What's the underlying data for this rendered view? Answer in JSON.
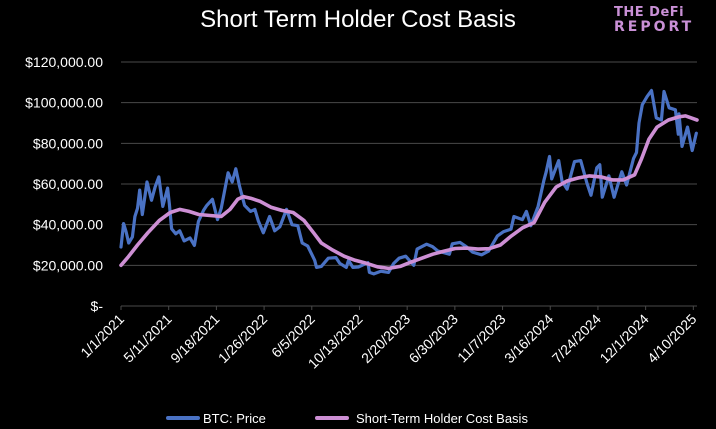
{
  "brand": {
    "line1": "THE DeFi",
    "line2": "REPORT"
  },
  "colors": {
    "background": "#000000",
    "grid": "#4a4a4a",
    "text": "#ffffff",
    "btc_price": "#4a72c4",
    "sth_cost_basis": "#cd8fd4",
    "brand": "#c990d6"
  },
  "chart_data": {
    "type": "line",
    "title": "Short Term Holder Cost Basis",
    "xlabel": "",
    "ylabel": "",
    "x_axis_type": "date",
    "xlim": [
      "2021-01-01",
      "2025-04-20"
    ],
    "ylim": [
      0,
      120000
    ],
    "grid": true,
    "legend_position": "bottom",
    "y_ticks": [
      {
        "value": 120000,
        "label": "$120,000.00"
      },
      {
        "value": 100000,
        "label": "$100,000.00"
      },
      {
        "value": 80000,
        "label": "$80,000.00"
      },
      {
        "value": 60000,
        "label": "$60,000.00"
      },
      {
        "value": 40000,
        "label": "$40,000.00"
      },
      {
        "value": 20000,
        "label": "$20,000.00"
      },
      {
        "value": 0,
        "label": "$-"
      }
    ],
    "x_ticks": [
      {
        "date": "2021-01-01",
        "label": "1/1/2021"
      },
      {
        "date": "2021-05-11",
        "label": "5/11/2021"
      },
      {
        "date": "2021-09-18",
        "label": "9/18/2021"
      },
      {
        "date": "2022-01-26",
        "label": "1/26/2022"
      },
      {
        "date": "2022-06-05",
        "label": "6/5/2022"
      },
      {
        "date": "2022-10-13",
        "label": "10/13/2022"
      },
      {
        "date": "2023-02-20",
        "label": "2/20/2023"
      },
      {
        "date": "2023-06-30",
        "label": "6/30/2023"
      },
      {
        "date": "2023-11-07",
        "label": "11/7/2023"
      },
      {
        "date": "2024-03-16",
        "label": "3/16/2024"
      },
      {
        "date": "2024-07-24",
        "label": "7/24/2024"
      },
      {
        "date": "2024-12-01",
        "label": "12/1/2024"
      },
      {
        "date": "2025-04-10",
        "label": "4/10/2025"
      }
    ],
    "series": [
      {
        "name": "BTC: Price",
        "color": "#4a72c4",
        "points": [
          [
            "2021-01-01",
            29000
          ],
          [
            "2021-01-08",
            40500
          ],
          [
            "2021-01-15",
            36500
          ],
          [
            "2021-01-22",
            31000
          ],
          [
            "2021-02-01",
            34000
          ],
          [
            "2021-02-08",
            44000
          ],
          [
            "2021-02-15",
            48000
          ],
          [
            "2021-02-21",
            57000
          ],
          [
            "2021-02-28",
            45000
          ],
          [
            "2021-03-13",
            61000
          ],
          [
            "2021-03-25",
            52000
          ],
          [
            "2021-04-04",
            58500
          ],
          [
            "2021-04-14",
            63500
          ],
          [
            "2021-04-25",
            49000
          ],
          [
            "2021-05-08",
            58000
          ],
          [
            "2021-05-13",
            50000
          ],
          [
            "2021-05-19",
            38000
          ],
          [
            "2021-05-30",
            35500
          ],
          [
            "2021-06-10",
            37000
          ],
          [
            "2021-06-22",
            32000
          ],
          [
            "2021-07-08",
            33500
          ],
          [
            "2021-07-20",
            29800
          ],
          [
            "2021-07-31",
            41500
          ],
          [
            "2021-08-14",
            47000
          ],
          [
            "2021-08-23",
            49500
          ],
          [
            "2021-09-07",
            52500
          ],
          [
            "2021-09-21",
            42500
          ],
          [
            "2021-10-01",
            48000
          ],
          [
            "2021-10-15",
            61000
          ],
          [
            "2021-10-20",
            65500
          ],
          [
            "2021-10-31",
            61000
          ],
          [
            "2021-11-10",
            67500
          ],
          [
            "2021-11-20",
            59000
          ],
          [
            "2021-12-04",
            49500
          ],
          [
            "2021-12-20",
            46500
          ],
          [
            "2022-01-01",
            47500
          ],
          [
            "2022-01-10",
            42000
          ],
          [
            "2022-01-24",
            36000
          ],
          [
            "2022-02-10",
            44000
          ],
          [
            "2022-02-24",
            37000
          ],
          [
            "2022-03-10",
            39000
          ],
          [
            "2022-03-28",
            47500
          ],
          [
            "2022-04-12",
            40000
          ],
          [
            "2022-04-28",
            39500
          ],
          [
            "2022-05-10",
            31000
          ],
          [
            "2022-05-25",
            29500
          ],
          [
            "2022-06-13",
            22500
          ],
          [
            "2022-06-18",
            19000
          ],
          [
            "2022-07-01",
            19500
          ],
          [
            "2022-07-20",
            23500
          ],
          [
            "2022-08-10",
            23800
          ],
          [
            "2022-08-20",
            21000
          ],
          [
            "2022-09-07",
            19000
          ],
          [
            "2022-09-13",
            22500
          ],
          [
            "2022-09-25",
            19000
          ],
          [
            "2022-10-10",
            19200
          ],
          [
            "2022-10-26",
            20500
          ],
          [
            "2022-11-05",
            21300
          ],
          [
            "2022-11-09",
            16500
          ],
          [
            "2022-11-21",
            15800
          ],
          [
            "2022-12-10",
            17100
          ],
          [
            "2022-12-31",
            16500
          ],
          [
            "2023-01-14",
            20900
          ],
          [
            "2023-01-29",
            23500
          ],
          [
            "2023-02-16",
            24500
          ],
          [
            "2023-03-10",
            20000
          ],
          [
            "2023-03-19",
            28000
          ],
          [
            "2023-04-14",
            30400
          ],
          [
            "2023-04-30",
            29200
          ],
          [
            "2023-05-15",
            27000
          ],
          [
            "2023-06-15",
            25500
          ],
          [
            "2023-06-23",
            30600
          ],
          [
            "2023-07-14",
            31300
          ],
          [
            "2023-07-31",
            29200
          ],
          [
            "2023-08-17",
            26500
          ],
          [
            "2023-09-11",
            25200
          ],
          [
            "2023-09-30",
            27000
          ],
          [
            "2023-10-24",
            34500
          ],
          [
            "2023-11-09",
            36500
          ],
          [
            "2023-11-30",
            37800
          ],
          [
            "2023-12-08",
            44000
          ],
          [
            "2023-12-31",
            42500
          ],
          [
            "2024-01-11",
            46500
          ],
          [
            "2024-01-23",
            39500
          ],
          [
            "2024-02-12",
            49000
          ],
          [
            "2024-02-28",
            62000
          ],
          [
            "2024-03-05",
            66000
          ],
          [
            "2024-03-14",
            73500
          ],
          [
            "2024-03-20",
            62500
          ],
          [
            "2024-04-08",
            71500
          ],
          [
            "2024-04-17",
            61500
          ],
          [
            "2024-05-01",
            57500
          ],
          [
            "2024-05-21",
            71000
          ],
          [
            "2024-06-07",
            71500
          ],
          [
            "2024-06-24",
            60500
          ],
          [
            "2024-07-05",
            54500
          ],
          [
            "2024-07-21",
            68000
          ],
          [
            "2024-07-29",
            69500
          ],
          [
            "2024-08-05",
            53500
          ],
          [
            "2024-08-23",
            64000
          ],
          [
            "2024-09-06",
            53500
          ],
          [
            "2024-09-27",
            66000
          ],
          [
            "2024-10-10",
            59500
          ],
          [
            "2024-10-29",
            72500
          ],
          [
            "2024-11-06",
            75500
          ],
          [
            "2024-11-13",
            90000
          ],
          [
            "2024-11-22",
            99000
          ],
          [
            "2024-12-05",
            103000
          ],
          [
            "2024-12-17",
            106000
          ],
          [
            "2024-12-30",
            92500
          ],
          [
            "2025-01-13",
            91500
          ],
          [
            "2025-01-20",
            105500
          ],
          [
            "2025-02-03",
            97500
          ],
          [
            "2025-02-20",
            96500
          ],
          [
            "2025-02-28",
            84500
          ],
          [
            "2025-03-02",
            94500
          ],
          [
            "2025-03-10",
            78500
          ],
          [
            "2025-03-25",
            88000
          ],
          [
            "2025-04-07",
            76500
          ],
          [
            "2025-04-18",
            85000
          ]
        ]
      },
      {
        "name": "Short-Term Holder Cost Basis",
        "color": "#cd8fd4",
        "points": [
          [
            "2021-01-01",
            20000
          ],
          [
            "2021-01-20",
            24000
          ],
          [
            "2021-02-15",
            30000
          ],
          [
            "2021-03-15",
            36000
          ],
          [
            "2021-04-15",
            42000
          ],
          [
            "2021-05-15",
            46000
          ],
          [
            "2021-06-10",
            47500
          ],
          [
            "2021-07-05",
            46500
          ],
          [
            "2021-08-01",
            45000
          ],
          [
            "2021-09-01",
            44500
          ],
          [
            "2021-10-01",
            44000
          ],
          [
            "2021-10-25",
            47500
          ],
          [
            "2021-11-15",
            52500
          ],
          [
            "2021-12-01",
            53800
          ],
          [
            "2021-12-20",
            53000
          ],
          [
            "2022-01-15",
            51500
          ],
          [
            "2022-02-15",
            48500
          ],
          [
            "2022-03-15",
            47000
          ],
          [
            "2022-04-15",
            46000
          ],
          [
            "2022-05-15",
            42000
          ],
          [
            "2022-06-10",
            36000
          ],
          [
            "2022-07-01",
            31000
          ],
          [
            "2022-08-01",
            27500
          ],
          [
            "2022-09-01",
            24500
          ],
          [
            "2022-10-01",
            22500
          ],
          [
            "2022-11-01",
            21000
          ],
          [
            "2022-12-01",
            19300
          ],
          [
            "2023-01-01",
            18500
          ],
          [
            "2023-02-01",
            19500
          ],
          [
            "2023-03-01",
            21500
          ],
          [
            "2023-04-01",
            23500
          ],
          [
            "2023-05-01",
            25500
          ],
          [
            "2023-06-01",
            27000
          ],
          [
            "2023-07-01",
            28300
          ],
          [
            "2023-08-01",
            28500
          ],
          [
            "2023-09-01",
            28000
          ],
          [
            "2023-10-01",
            28200
          ],
          [
            "2023-11-01",
            30000
          ],
          [
            "2023-12-01",
            34500
          ],
          [
            "2024-01-01",
            38500
          ],
          [
            "2024-02-01",
            41000
          ],
          [
            "2024-03-01",
            51000
          ],
          [
            "2024-04-01",
            58500
          ],
          [
            "2024-05-01",
            61500
          ],
          [
            "2024-06-01",
            63000
          ],
          [
            "2024-07-01",
            64000
          ],
          [
            "2024-08-01",
            63500
          ],
          [
            "2024-09-01",
            62000
          ],
          [
            "2024-10-01",
            62000
          ],
          [
            "2024-11-01",
            64500
          ],
          [
            "2024-11-20",
            72500
          ],
          [
            "2024-12-10",
            82000
          ],
          [
            "2025-01-01",
            88000
          ],
          [
            "2025-02-01",
            91500
          ],
          [
            "2025-03-01",
            93000
          ],
          [
            "2025-03-20",
            93500
          ],
          [
            "2025-04-20",
            91500
          ]
        ]
      }
    ]
  }
}
